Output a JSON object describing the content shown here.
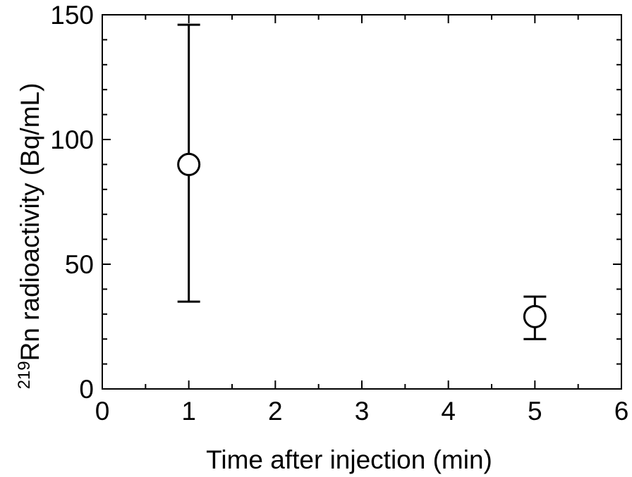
{
  "chart_data": {
    "type": "scatter",
    "xlabel": "Time after injection (min)",
    "ylabel_superscript": "219",
    "ylabel": "Rn radioactivity (Bq/mL)",
    "xlim": [
      0,
      6
    ],
    "ylim": [
      0,
      150
    ],
    "x_ticks": [
      0,
      1,
      2,
      3,
      4,
      5,
      6
    ],
    "y_ticks": [
      0,
      50,
      100,
      150
    ],
    "x_tick_labels": [
      "0",
      "1",
      "2",
      "3",
      "4",
      "5",
      "6"
    ],
    "y_tick_labels": [
      "0",
      "50",
      "100",
      "150"
    ],
    "grid": false,
    "marker": "open-circle",
    "points": [
      {
        "x": 1,
        "y": 90,
        "y_err_low": 35,
        "y_err_high": 146
      },
      {
        "x": 5,
        "y": 29,
        "y_err_low": 20,
        "y_err_high": 37
      }
    ],
    "colors": {
      "axis": "#000000",
      "marker": "#000000",
      "background": "#ffffff"
    }
  }
}
